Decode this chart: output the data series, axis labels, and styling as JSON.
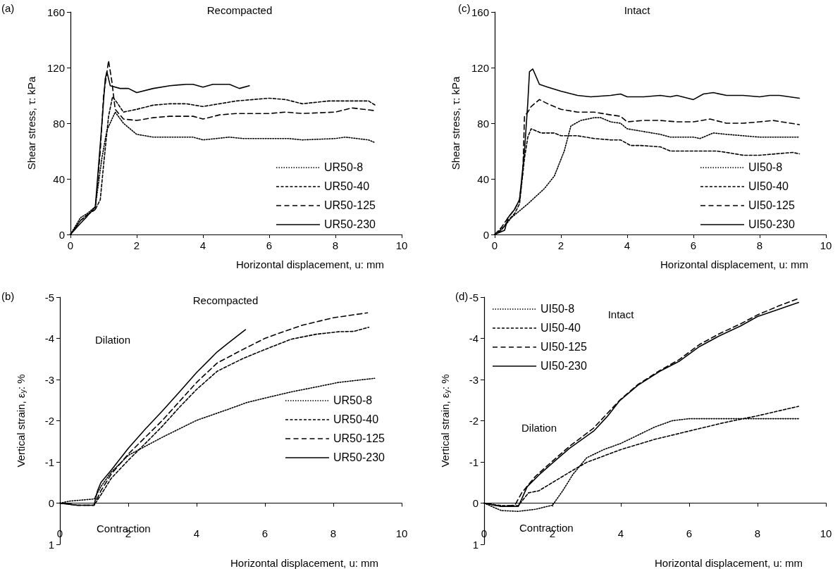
{
  "chart_data": [
    {
      "type": "line",
      "title": "Recompacted",
      "xlabel": "Horizontal displacement, u: mm",
      "ylabel": "Shear stress, τ: kPa",
      "annotations": [
        "(a)"
      ],
      "xlim": [
        0,
        10
      ],
      "xticks": [
        0,
        2,
        4,
        6,
        8,
        10
      ],
      "ylim": [
        0,
        160
      ],
      "yticks": [
        0,
        40,
        80,
        120,
        160
      ],
      "legend": "bottom right",
      "marker": "none",
      "series": [
        {
          "name": "UR50-8",
          "color": "#000000",
          "line_style": "dotted",
          "x": [
            0,
            0.3,
            0.5,
            0.75,
            0.95,
            1.1,
            1.35,
            1.6,
            2,
            2.5,
            3,
            3.7,
            4,
            4.8,
            5.2,
            6,
            6.6,
            7,
            8,
            8.3,
            9,
            9.2
          ],
          "values": [
            0,
            12,
            15,
            20,
            55,
            75,
            88,
            80,
            72,
            70,
            70,
            70,
            68,
            70,
            69,
            69,
            69,
            68,
            69,
            70,
            68,
            66
          ]
        },
        {
          "name": "UR50-40",
          "color": "#000000",
          "line_style": "dashed",
          "x": [
            0,
            0.3,
            0.5,
            0.75,
            0.9,
            1.0,
            1.15,
            1.27,
            1.4,
            1.6,
            2,
            2.5,
            3,
            3.5,
            4,
            4.5,
            5,
            6,
            6.5,
            7,
            7.8,
            8.5,
            9,
            9.2
          ],
          "values": [
            0,
            10,
            14,
            18,
            25,
            50,
            85,
            99,
            95,
            88,
            90,
            93,
            94,
            94,
            92,
            94,
            96,
            98,
            97,
            94,
            96,
            96,
            96,
            93
          ]
        },
        {
          "name": "UR50-125",
          "color": "#000000",
          "line_style": "dashed",
          "x": [
            0,
            0.3,
            0.5,
            0.75,
            0.9,
            1.0,
            1.15,
            1.25,
            1.35,
            1.6,
            2,
            2.5,
            3,
            3.7,
            4,
            4.5,
            5,
            6,
            6.5,
            7,
            8,
            8.5,
            9.2
          ],
          "values": [
            0,
            10,
            14,
            18,
            60,
            100,
            125,
            110,
            90,
            83,
            82,
            84,
            85,
            85,
            83,
            86,
            87,
            87,
            88,
            87,
            88,
            91,
            89
          ]
        },
        {
          "name": "UR50-230",
          "color": "#000000",
          "line_style": "solid",
          "x": [
            0,
            0.3,
            0.5,
            0.75,
            0.95,
            1.05,
            1.1,
            1.2,
            1.5,
            1.75,
            2,
            2.5,
            3,
            3.5,
            3.7,
            4,
            4.3,
            4.8,
            5.1,
            5.4
          ],
          "values": [
            0,
            8,
            13,
            20,
            80,
            112,
            117,
            107,
            105,
            105,
            102,
            105,
            107,
            108,
            108,
            106,
            108,
            108,
            105,
            107
          ]
        }
      ]
    },
    {
      "type": "line",
      "title": "Intact",
      "xlabel": "Horizontal displacement, u: mm",
      "ylabel": "Shear stress, τ: kPa",
      "annotations": [
        "(c)"
      ],
      "xlim": [
        0,
        10
      ],
      "xticks": [
        0,
        2,
        4,
        6,
        8,
        10
      ],
      "ylim": [
        0,
        160
      ],
      "yticks": [
        0,
        40,
        80,
        120,
        160
      ],
      "legend": "bottom right",
      "marker": "none",
      "series": [
        {
          "name": "UI50-8",
          "color": "#000000",
          "line_style": "dotted",
          "x": [
            0,
            0.3,
            0.5,
            0.8,
            1,
            1.5,
            1.8,
            2.1,
            2.3,
            2.6,
            3,
            3.2,
            3.5,
            3.8,
            4,
            4.5,
            5,
            5.3,
            6,
            6.2,
            6.6,
            7,
            8,
            8.5,
            9.2
          ],
          "values": [
            0,
            6,
            12,
            18,
            22,
            33,
            42,
            60,
            78,
            82,
            84,
            84,
            81,
            80,
            76,
            74,
            72,
            70,
            70,
            69,
            73,
            72,
            70,
            70,
            70
          ]
        },
        {
          "name": "UI50-40",
          "color": "#000000",
          "line_style": "dashed",
          "x": [
            0,
            0.2,
            0.4,
            0.6,
            0.75,
            0.9,
            1.0,
            1.1,
            1.4,
            1.8,
            2,
            2.5,
            3,
            3.5,
            3.8,
            4.1,
            4.4,
            5,
            5.3,
            6,
            6.7,
            7,
            7.5,
            8,
            8.5,
            9,
            9.2
          ],
          "values": [
            0,
            3,
            10,
            15,
            22,
            55,
            70,
            76,
            73,
            73,
            71,
            71,
            69,
            68,
            68,
            64,
            64,
            63,
            60,
            60,
            60,
            59,
            57,
            57,
            58,
            59,
            58
          ]
        },
        {
          "name": "UI50-125",
          "color": "#000000",
          "line_style": "dashed",
          "x": [
            0,
            0.2,
            0.4,
            0.6,
            0.75,
            0.85,
            0.9,
            1.0,
            1.1,
            1.35,
            1.6,
            2,
            2.5,
            3,
            3.5,
            3.8,
            4,
            4.5,
            5,
            5.5,
            6,
            6.5,
            7,
            7.5,
            8,
            8.4,
            9.2
          ],
          "values": [
            0,
            5,
            12,
            18,
            25,
            45,
            85,
            88,
            92,
            97,
            94,
            90,
            88,
            88,
            86,
            85,
            81,
            82,
            82,
            81,
            81,
            83,
            80,
            80,
            81,
            82,
            79
          ]
        },
        {
          "name": "UI50-230",
          "color": "#000000",
          "line_style": "solid",
          "x": [
            0,
            0.3,
            0.4,
            0.6,
            0.75,
            0.9,
            1.0,
            1.05,
            1.15,
            1.35,
            1.6,
            2,
            2.5,
            2.9,
            3.5,
            3.8,
            4,
            4.5,
            5,
            5.3,
            5.5,
            6,
            6.3,
            6.6,
            7,
            7.5,
            8,
            8.3,
            8.6,
            9.2
          ],
          "values": [
            0,
            3,
            12,
            18,
            25,
            60,
            95,
            117,
            119,
            108,
            106,
            103,
            100,
            99,
            100,
            101,
            99,
            99,
            100,
            99,
            100,
            97,
            101,
            102,
            100,
            100,
            99,
            100,
            100,
            98
          ]
        }
      ]
    },
    {
      "type": "line",
      "title": "Recompacted",
      "xlabel": "Horizontal displacement, u: mm",
      "ylabel": "Vertical strain, ε$_{y}$: %",
      "annotations": [
        "(b)",
        "Dilation",
        "Contraction"
      ],
      "xlim": [
        0,
        10
      ],
      "xticks": [
        0,
        2,
        4,
        6,
        8,
        10
      ],
      "ylim": [
        1,
        -5
      ],
      "yticks": [
        1,
        0,
        -1,
        -2,
        -3,
        -4,
        -5
      ],
      "legend": "right",
      "marker": "none",
      "series": [
        {
          "name": "UR50-8",
          "color": "#000000",
          "line_style": "dotted",
          "x": [
            0,
            0.3,
            1.0,
            1.2,
            1.5,
            2,
            3,
            4,
            5,
            5.46,
            6,
            6.77,
            7.5,
            8.15,
            9.21
          ],
          "values": [
            0,
            -0.05,
            -0.1,
            -0.4,
            -0.75,
            -1.16,
            -1.6,
            -2.01,
            -2.3,
            -2.44,
            -2.55,
            -2.7,
            -2.82,
            -2.93,
            -3.03
          ]
        },
        {
          "name": "UR50-40",
          "color": "#000000",
          "line_style": "dashed",
          "x": [
            0,
            0.5,
            1.0,
            1.2,
            1.5,
            2,
            2.5,
            3,
            3.5,
            4,
            4.6,
            5.33,
            6,
            6.77,
            7.5,
            8.15,
            8.6,
            9.04
          ],
          "values": [
            0,
            0.05,
            0.05,
            -0.2,
            -0.6,
            -1.04,
            -1.45,
            -1.87,
            -2.33,
            -2.76,
            -3.2,
            -3.5,
            -3.73,
            -3.98,
            -4.1,
            -4.16,
            -4.17,
            -4.27
          ]
        },
        {
          "name": "UR50-125",
          "color": "#000000",
          "line_style": "dashed",
          "x": [
            0,
            0.5,
            1.0,
            1.2,
            1.5,
            2,
            2.5,
            3,
            3.5,
            4,
            4.6,
            5.33,
            6,
            6.5,
            7.1,
            8,
            9.0
          ],
          "values": [
            0,
            0.05,
            0.05,
            -0.3,
            -0.7,
            -1.19,
            -1.6,
            -2.01,
            -2.47,
            -2.93,
            -3.4,
            -3.72,
            -4.0,
            -4.15,
            -4.32,
            -4.5,
            -4.62
          ]
        },
        {
          "name": "UR50-230",
          "color": "#000000",
          "line_style": "solid",
          "x": [
            0,
            0.5,
            1.0,
            1.1,
            1.2,
            1.5,
            2,
            2.5,
            3,
            3.5,
            4,
            4.6,
            4.9,
            5.43
          ],
          "values": [
            0,
            0.05,
            0.05,
            -0.3,
            -0.5,
            -0.8,
            -1.33,
            -1.8,
            -2.24,
            -2.7,
            -3.17,
            -3.67,
            -3.87,
            -4.21
          ]
        }
      ]
    },
    {
      "type": "line",
      "title": "Intact",
      "xlabel": "Horizontal displacement, u: mm",
      "ylabel": "Vertical strain, ε$_{y}$: %",
      "annotations": [
        "(d)",
        "Dilation",
        "Contraction"
      ],
      "xlim": [
        0,
        10
      ],
      "xticks": [
        0,
        2,
        4,
        6,
        8,
        10
      ],
      "ylim": [
        1,
        -5
      ],
      "yticks": [
        1,
        0,
        -1,
        -2,
        -3,
        -4,
        -5
      ],
      "legend": "top left",
      "marker": "none",
      "series": [
        {
          "name": "UI50-8",
          "color": "#000000",
          "line_style": "dotted",
          "x": [
            0,
            0.5,
            1,
            1.5,
            2,
            2.3,
            2.6,
            3,
            3.5,
            4,
            4.5,
            5,
            5.5,
            6,
            7,
            8,
            9.2
          ],
          "values": [
            0,
            0.18,
            0.2,
            0.15,
            0.05,
            -0.3,
            -0.7,
            -1.1,
            -1.3,
            -1.45,
            -1.65,
            -1.85,
            -2.0,
            -2.05,
            -2.05,
            -2.05,
            -2.05
          ]
        },
        {
          "name": "UI50-40",
          "color": "#000000",
          "line_style": "dashed",
          "x": [
            0,
            0.5,
            1.0,
            1.3,
            1.6,
            2,
            2.5,
            3,
            4,
            5,
            6,
            7,
            8,
            9.2
          ],
          "values": [
            0,
            0.06,
            0.06,
            -0.25,
            -0.3,
            -0.5,
            -0.75,
            -0.99,
            -1.3,
            -1.55,
            -1.75,
            -1.95,
            -2.12,
            -2.35
          ]
        },
        {
          "name": "UI50-125",
          "color": "#000000",
          "line_style": "dashed",
          "x": [
            0,
            0.5,
            0.9,
            1.1,
            1.5,
            2,
            2.5,
            3.2,
            3.97,
            4.5,
            5.1,
            5.7,
            6.3,
            6.9,
            7.5,
            8.0,
            8.6,
            9.2
          ],
          "values": [
            0,
            0.08,
            0.05,
            -0.25,
            -0.65,
            -1.02,
            -1.38,
            -1.82,
            -2.5,
            -2.88,
            -3.2,
            -3.48,
            -3.85,
            -4.12,
            -4.35,
            -4.57,
            -4.78,
            -4.97
          ]
        },
        {
          "name": "UI50-230",
          "color": "#000000",
          "line_style": "solid",
          "x": [
            0,
            0.3,
            0.5,
            1.0,
            1.1,
            1.26,
            1.6,
            1.98,
            2.5,
            3.22,
            3.6,
            3.97,
            4.5,
            5.14,
            5.72,
            6.3,
            6.86,
            7.5,
            8.0,
            8.5,
            9.2
          ],
          "values": [
            0,
            0.05,
            0.08,
            0.08,
            -0.1,
            -0.4,
            -0.68,
            -0.96,
            -1.33,
            -1.76,
            -2.1,
            -2.49,
            -2.86,
            -3.2,
            -3.45,
            -3.8,
            -4.05,
            -4.3,
            -4.53,
            -4.67,
            -4.87
          ]
        }
      ]
    }
  ]
}
